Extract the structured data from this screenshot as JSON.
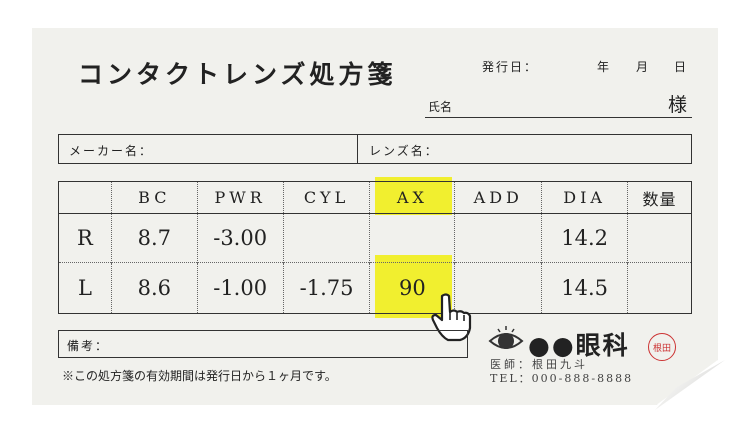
{
  "title": "コンタクトレンズ処方箋",
  "issue_date": {
    "label": "発行日：",
    "year": "年",
    "month": "月",
    "day": "日"
  },
  "patient": {
    "label": "氏名",
    "suffix": "様"
  },
  "maker_label": "メーカー名：",
  "lens_label": "レンズ名：",
  "table": {
    "headers": [
      "",
      "BC",
      "PWR",
      "CYL",
      "AX",
      "ADD",
      "DIA",
      "数量"
    ],
    "rows": [
      [
        "R",
        "8.7",
        "-3.00",
        "",
        "",
        "",
        "14.2",
        ""
      ],
      [
        "L",
        "8.6",
        "-1.00",
        "-1.75",
        "90",
        "",
        "14.5",
        ""
      ]
    ]
  },
  "remarks_label": "備考：",
  "footnote": "※この処方箋の有効期間は発行日から１ヶ月です。",
  "clinic": {
    "name": "●●眼科",
    "doctor": "医師：根田九斗",
    "tel": "TEL：000-888-8888",
    "seal": "根田"
  },
  "highlight_color": "#f1ef2f",
  "icons": [
    "eye-icon",
    "hand-pointer-icon"
  ]
}
